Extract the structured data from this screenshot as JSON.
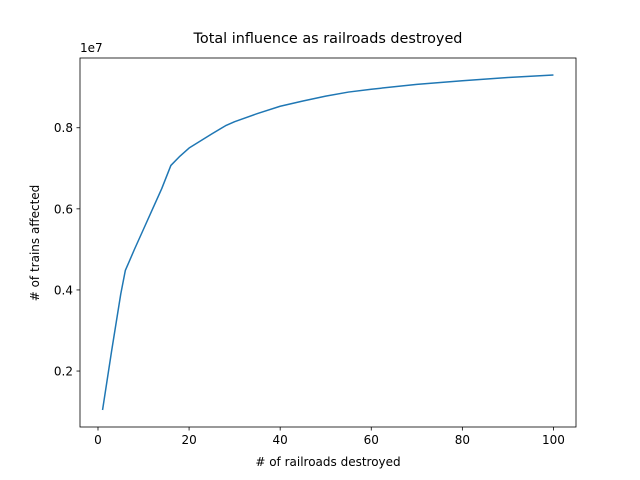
{
  "chart_data": {
    "type": "line",
    "title": "Total influence as railroads destroyed",
    "x_label": "# of railroads destroyed",
    "y_label": "# of trains affected",
    "y_offset_label": "1e7",
    "color": "#1f77b4",
    "x": [
      1,
      3,
      5,
      6,
      8,
      10,
      12,
      14,
      16,
      18,
      20,
      25,
      28,
      30,
      35,
      40,
      45,
      50,
      55,
      60,
      70,
      80,
      90,
      100
    ],
    "values": [
      0.104,
      0.25,
      0.39,
      0.448,
      0.5,
      0.55,
      0.6,
      0.65,
      0.707,
      0.73,
      0.75,
      0.785,
      0.805,
      0.815,
      0.835,
      0.853,
      0.866,
      0.878,
      0.888,
      0.895,
      0.907,
      0.916,
      0.924,
      0.93
    ],
    "xlim": [
      -3.95,
      104.95
    ],
    "xticks": [
      0,
      20,
      40,
      60,
      80,
      100
    ],
    "ylim": [
      0.062,
      0.972
    ],
    "yticks": [
      0.2,
      0.4,
      0.6,
      0.8
    ],
    "grid": false
  }
}
